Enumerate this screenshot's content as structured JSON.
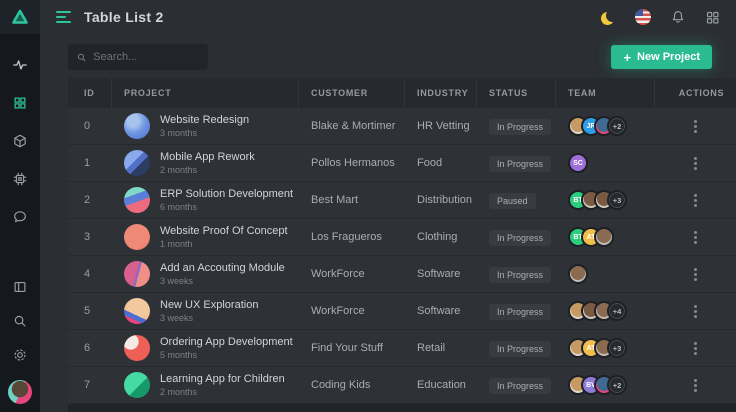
{
  "app": {
    "accent_color": "#2abb92",
    "background_color": "#2b2f34",
    "sidebar_color": "#15181c"
  },
  "topbar": {
    "title": "Table List 2",
    "icons": [
      "menu",
      "moon",
      "us-flag",
      "bell",
      "apps-grid"
    ]
  },
  "sidebar": {
    "logo_icon": "triangle-logo",
    "nav_icons": [
      "activity",
      "apps-grid-active",
      "package",
      "cpu",
      "chat"
    ],
    "footer_icons": [
      "panel",
      "search",
      "settings",
      "user-avatar"
    ]
  },
  "search": {
    "placeholder": "Search..."
  },
  "new_project_button": {
    "icon": "+",
    "label": "New Project"
  },
  "table": {
    "columns": [
      "ID",
      "PROJECT",
      "CUSTOMER",
      "INDUSTRY",
      "STATUS",
      "TEAM",
      "ACTIONS"
    ],
    "rows": [
      {
        "id": "0",
        "project": "Website Redesign",
        "duration": "3 months",
        "customer": "Blake & Mortimer",
        "industry": "HR Vetting",
        "status": "In Progress",
        "thumb": "planet",
        "team": [
          {
            "kind": "photo",
            "style": "photo-a"
          },
          {
            "kind": "initials",
            "text": "JR",
            "color": "#2e9fe6"
          },
          {
            "kind": "photo",
            "style": "photo-d"
          },
          {
            "kind": "count",
            "text": "+2"
          }
        ]
      },
      {
        "id": "1",
        "project": "Mobile App Rework",
        "duration": "2 months",
        "customer": "Pollos Hermanos",
        "industry": "Food",
        "status": "In Progress",
        "thumb": "cube",
        "team": [
          {
            "kind": "initials",
            "text": "SC",
            "color": "#9e6fd8"
          }
        ]
      },
      {
        "id": "2",
        "project": "ERP Solution Development",
        "duration": "6 months",
        "customer": "Best Mart",
        "industry": "Distribution",
        "status": "Paused",
        "thumb": "tri",
        "team": [
          {
            "kind": "initials",
            "text": "BT",
            "color": "#2ecc7e"
          },
          {
            "kind": "photo",
            "style": "photo-b"
          },
          {
            "kind": "photo",
            "style": "photo-b"
          },
          {
            "kind": "count",
            "text": "+3"
          }
        ]
      },
      {
        "id": "3",
        "project": "Website Proof Of Concept",
        "duration": "1 month",
        "customer": "Los Fragueros",
        "industry": "Clothing",
        "status": "In Progress",
        "thumb": "dots",
        "team": [
          {
            "kind": "initials",
            "text": "BT",
            "color": "#2ecc7e"
          },
          {
            "kind": "initials",
            "text": "AT",
            "color": "#f0be4a"
          },
          {
            "kind": "photo",
            "style": "photo-c"
          }
        ]
      },
      {
        "id": "4",
        "project": "Add an Accouting Module",
        "duration": "3 weeks",
        "customer": "WorkForce",
        "industry": "Software",
        "status": "In Progress",
        "thumb": "pink",
        "team": [
          {
            "kind": "photo",
            "style": "photo-c"
          }
        ]
      },
      {
        "id": "5",
        "project": "New UX Exploration",
        "duration": "3 weeks",
        "customer": "WorkForce",
        "industry": "Software",
        "status": "In Progress",
        "thumb": "peach",
        "team": [
          {
            "kind": "photo",
            "style": "photo-a"
          },
          {
            "kind": "photo",
            "style": "photo-b"
          },
          {
            "kind": "photo",
            "style": "photo-c"
          },
          {
            "kind": "count",
            "text": "+4"
          }
        ]
      },
      {
        "id": "6",
        "project": "Ordering App Development",
        "duration": "5 months",
        "customer": "Find Your Stuff",
        "industry": "Retail",
        "status": "In Progress",
        "thumb": "wave",
        "team": [
          {
            "kind": "photo",
            "style": "photo-a"
          },
          {
            "kind": "initials",
            "text": "AT",
            "color": "#f0be4a"
          },
          {
            "kind": "photo",
            "style": "photo-c"
          },
          {
            "kind": "count",
            "text": "+3"
          }
        ]
      },
      {
        "id": "7",
        "project": "Learning App for Children",
        "duration": "2 months",
        "customer": "Coding Kids",
        "industry": "Education",
        "status": "In Progress",
        "thumb": "book",
        "team": [
          {
            "kind": "photo",
            "style": "photo-a"
          },
          {
            "kind": "initials",
            "text": "BV",
            "color": "#8f7ad8"
          },
          {
            "kind": "photo",
            "style": "photo-d"
          },
          {
            "kind": "count",
            "text": "+2"
          }
        ]
      }
    ]
  }
}
